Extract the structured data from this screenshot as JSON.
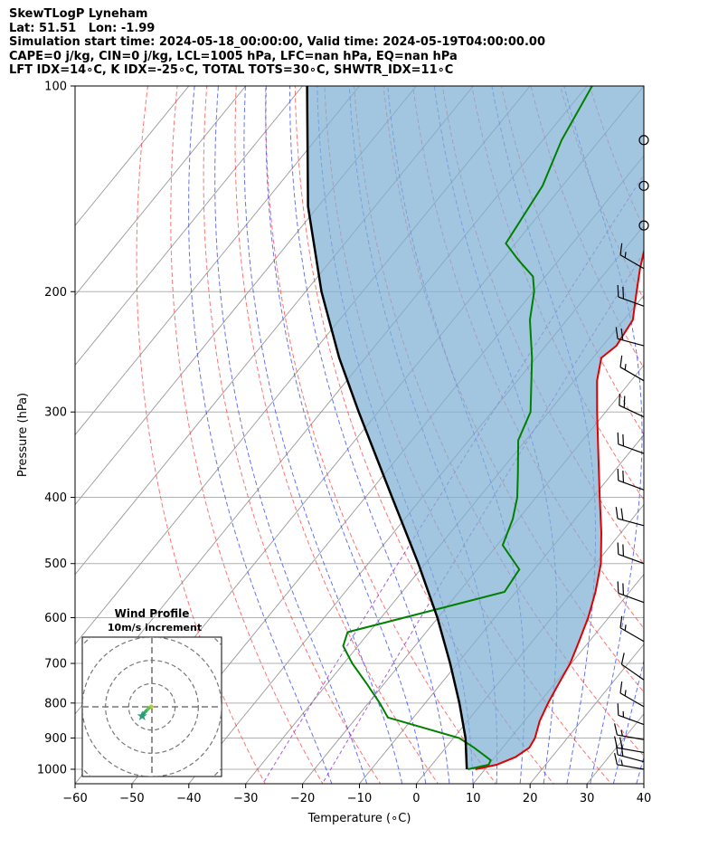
{
  "header": {
    "title": "SkewTLogP Lyneham",
    "location": "Lat: 51.51   Lon: -1.99",
    "times": "Simulation start time: 2024-05-18_00:00:00, Valid time: 2024-05-19T04:00:00.00",
    "indices1": "CAPE=0 j/kg, CIN=0 j/kg, LCL=1005 hPa, LFC=nan hPa, EQ=nan hPa",
    "indices2": "LFT IDX=14∘C, K IDX=-25∘C, TOTAL TOTS=30∘C, SHWTR_IDX=11∘C"
  },
  "colors": {
    "temperature": "#e00000",
    "dewpoint": "#008000",
    "parcel": "#000000",
    "cape_fill": "#7fb0d4",
    "dry_adiabat": "#ff4444",
    "moist_adiabat": "#3344ee",
    "mixing_ratio": "#9933cc",
    "isotherm": "#999999"
  },
  "chart_data": {
    "type": "line",
    "subtype": "skew-t log-p",
    "xlabel": "Temperature (∘C)",
    "ylabel": "Pressure (hPa)",
    "xlim": [
      -60,
      40
    ],
    "ylim": [
      1050,
      100
    ],
    "x_ticks": [
      -60,
      -50,
      -40,
      -30,
      -20,
      -10,
      0,
      10,
      20,
      30,
      40
    ],
    "y_ticks": [
      100,
      200,
      300,
      400,
      500,
      600,
      700,
      800,
      900,
      1000
    ],
    "grid": true,
    "series": [
      {
        "name": "Temperature",
        "points": [
          [
            1000,
            8.3
          ],
          [
            985,
            11.4
          ],
          [
            960,
            13.6
          ],
          [
            930,
            14.7
          ],
          [
            900,
            14.3
          ],
          [
            850,
            12.7
          ],
          [
            800,
            11.6
          ],
          [
            750,
            10.7
          ],
          [
            700,
            9.8
          ],
          [
            650,
            8.2
          ],
          [
            600,
            6.4
          ],
          [
            550,
            4.0
          ],
          [
            500,
            0.9
          ],
          [
            450,
            -3.5
          ],
          [
            400,
            -8.8
          ],
          [
            350,
            -14.7
          ],
          [
            300,
            -21.5
          ],
          [
            270,
            -26.0
          ],
          [
            250,
            -28.5
          ],
          [
            240,
            -27.6
          ],
          [
            220,
            -28.4
          ],
          [
            200,
            -31.8
          ],
          [
            185,
            -34.5
          ],
          [
            170,
            -37.1
          ],
          [
            150,
            -40.2
          ],
          [
            140,
            -42.3
          ],
          [
            130,
            -45.5
          ],
          [
            120,
            -47.8
          ],
          [
            110,
            -49.5
          ],
          [
            100,
            -51.5
          ]
        ]
      },
      {
        "name": "Dewpoint",
        "points": [
          [
            1000,
            7.0
          ],
          [
            985,
            10.0
          ],
          [
            970,
            9.7
          ],
          [
            930,
            5.0
          ],
          [
            900,
            1.0
          ],
          [
            840,
            -14.5
          ],
          [
            800,
            -18.0
          ],
          [
            750,
            -23.0
          ],
          [
            700,
            -28.5
          ],
          [
            660,
            -32.6
          ],
          [
            630,
            -33.8
          ],
          [
            550,
            -12.0
          ],
          [
            510,
            -12.6
          ],
          [
            470,
            -19.0
          ],
          [
            430,
            -21.0
          ],
          [
            400,
            -23.3
          ],
          [
            370,
            -26.5
          ],
          [
            330,
            -31.3
          ],
          [
            300,
            -33.2
          ],
          [
            250,
            -40.7
          ],
          [
            220,
            -46.5
          ],
          [
            200,
            -49.8
          ],
          [
            190,
            -52.2
          ],
          [
            180,
            -57.0
          ],
          [
            170,
            -61.7
          ],
          [
            140,
            -63.5
          ],
          [
            120,
            -66.7
          ],
          [
            100,
            -69.1
          ]
        ]
      },
      {
        "name": "Parcel",
        "points": [
          [
            1000,
            6.8
          ],
          [
            900,
            2.1
          ],
          [
            800,
            -4.0
          ],
          [
            700,
            -11.3
          ],
          [
            600,
            -20.1
          ],
          [
            500,
            -31.2
          ],
          [
            400,
            -45.3
          ],
          [
            300,
            -63.4
          ],
          [
            250,
            -74.6
          ],
          [
            200,
            -87.2
          ],
          [
            150,
            -101.8
          ],
          [
            100,
            -119.2
          ]
        ]
      }
    ],
    "isotherm_values": [
      -140,
      -130,
      -120,
      -110,
      -100,
      -90,
      -80,
      -70,
      -60,
      -50,
      -40,
      -30,
      -20,
      -10,
      0,
      10,
      20,
      30,
      40
    ],
    "dry_adiabat_theta_c": [
      -30,
      -20,
      -10,
      0,
      10,
      20,
      30,
      40,
      50,
      60,
      70,
      80,
      90,
      100,
      110,
      120
    ],
    "moist_adiabat_start_c": [
      -12,
      -6,
      0,
      4,
      8,
      12,
      16,
      20,
      24,
      28,
      32,
      36,
      40,
      44,
      48
    ],
    "mixing_ratio_gkg": [
      0.4,
      1
    ],
    "wind_barbs": [
      {
        "pressure": 120,
        "speed_kt": 0,
        "direction_deg": 0
      },
      {
        "pressure": 140,
        "speed_kt": 0,
        "direction_deg": 0
      },
      {
        "pressure": 160,
        "speed_kt": 0,
        "direction_deg": 0
      },
      {
        "pressure": 185,
        "speed_kt": 15,
        "direction_deg": 300
      },
      {
        "pressure": 210,
        "speed_kt": 20,
        "direction_deg": 290
      },
      {
        "pressure": 240,
        "speed_kt": 20,
        "direction_deg": 285
      },
      {
        "pressure": 270,
        "speed_kt": 15,
        "direction_deg": 300
      },
      {
        "pressure": 305,
        "speed_kt": 20,
        "direction_deg": 295
      },
      {
        "pressure": 345,
        "speed_kt": 20,
        "direction_deg": 290
      },
      {
        "pressure": 390,
        "speed_kt": 20,
        "direction_deg": 290
      },
      {
        "pressure": 440,
        "speed_kt": 20,
        "direction_deg": 285
      },
      {
        "pressure": 500,
        "speed_kt": 20,
        "direction_deg": 290
      },
      {
        "pressure": 570,
        "speed_kt": 20,
        "direction_deg": 290
      },
      {
        "pressure": 650,
        "speed_kt": 15,
        "direction_deg": 300
      },
      {
        "pressure": 740,
        "speed_kt": 10,
        "direction_deg": 305
      },
      {
        "pressure": 810,
        "speed_kt": 15,
        "direction_deg": 300
      },
      {
        "pressure": 860,
        "speed_kt": 15,
        "direction_deg": 290
      },
      {
        "pressure": 905,
        "speed_kt": 15,
        "direction_deg": 280
      },
      {
        "pressure": 945,
        "speed_kt": 20,
        "direction_deg": 280
      },
      {
        "pressure": 975,
        "speed_kt": 20,
        "direction_deg": 285
      },
      {
        "pressure": 1000,
        "speed_kt": 15,
        "direction_deg": 280
      }
    ],
    "hodograph": {
      "title": "Wind Profile",
      "subtitle": "10m/s increment",
      "ring_step_ms": 10,
      "range_ms": 30,
      "points_uv": [
        [
          0,
          0
        ],
        [
          -0.2,
          0.3
        ],
        [
          -1.2,
          -0.5
        ],
        [
          -2.5,
          -1.8
        ],
        [
          -3.5,
          -2.8
        ],
        [
          -4.2,
          -3.6
        ],
        [
          -4.5,
          -4.0
        ],
        [
          -4.2,
          -3.8
        ]
      ]
    }
  }
}
